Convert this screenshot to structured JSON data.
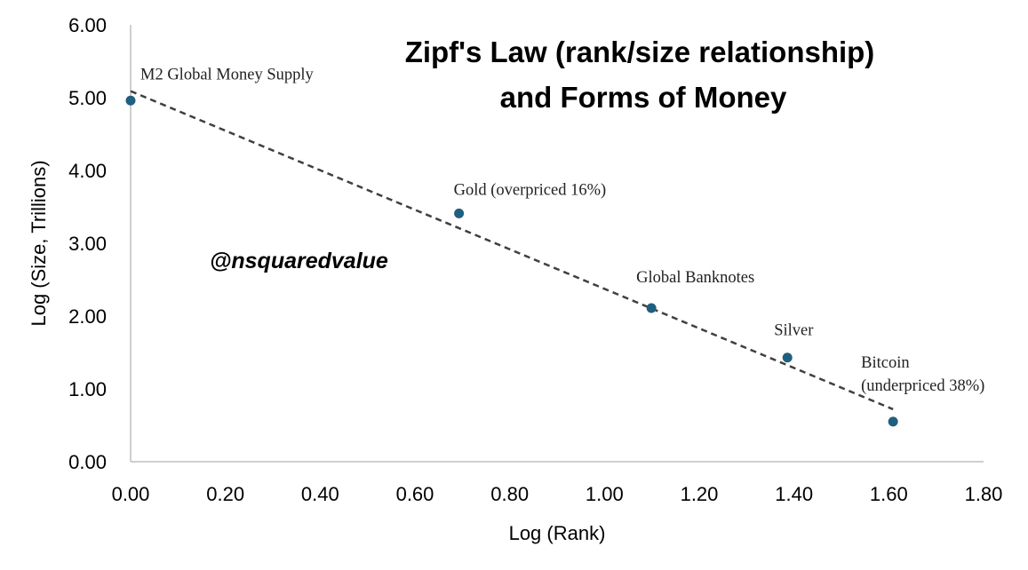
{
  "chart_data": {
    "type": "scatter",
    "title_lines": [
      "Zipf's Law (rank/size relationship)",
      "and Forms of Money"
    ],
    "xlabel": "Log (Rank)",
    "ylabel": "Log (Size, Trillions)",
    "xlim": [
      0,
      1.8
    ],
    "ylim": [
      0,
      6
    ],
    "x_ticks": [
      "0.00",
      "0.20",
      "0.40",
      "0.60",
      "0.80",
      "1.00",
      "1.20",
      "1.40",
      "1.60",
      "1.80"
    ],
    "y_ticks": [
      "0.00",
      "1.00",
      "2.00",
      "3.00",
      "4.00",
      "5.00",
      "6.00"
    ],
    "grid": false,
    "marker_color": "#1f5f7f",
    "trendline": {
      "style": "dashed",
      "color": "#404040",
      "points": [
        [
          0.0,
          5.09
        ],
        [
          1.609,
          0.72
        ]
      ]
    },
    "points": [
      {
        "x": 0.0,
        "y": 4.96,
        "label_lines": [
          "M2 Global Money Supply"
        ]
      },
      {
        "x": 0.693,
        "y": 3.41,
        "label_lines": [
          "Gold (overpriced 16%)"
        ]
      },
      {
        "x": 1.099,
        "y": 2.11,
        "label_lines": [
          "Global Banknotes"
        ]
      },
      {
        "x": 1.386,
        "y": 1.43,
        "label_lines": [
          "Silver"
        ]
      },
      {
        "x": 1.609,
        "y": 0.55,
        "label_lines": [
          "Bitcoin",
          "(underpriced 38%)"
        ]
      }
    ],
    "watermark": "@nsquaredvalue"
  }
}
